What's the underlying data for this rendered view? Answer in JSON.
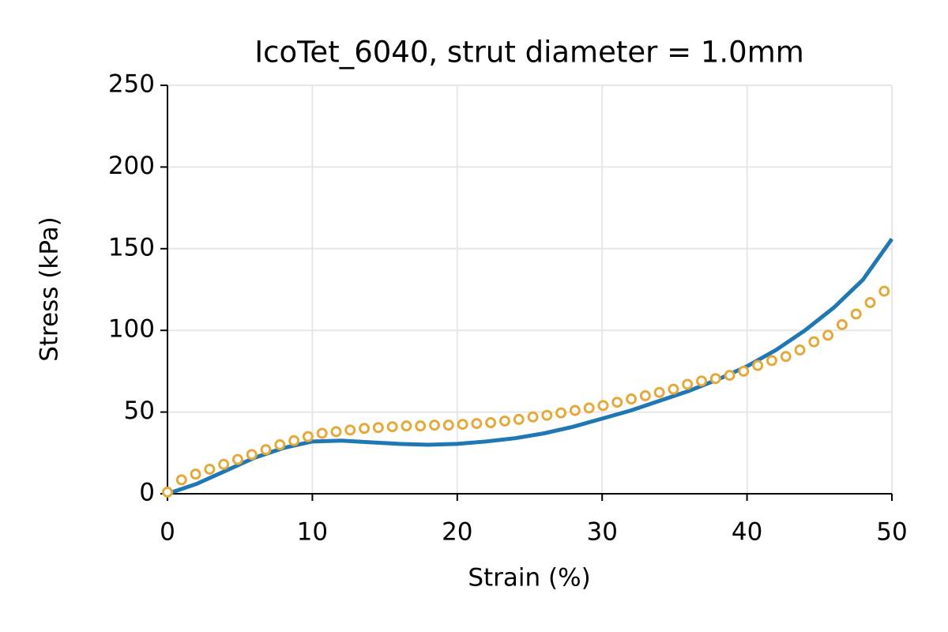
{
  "chart_data": {
    "type": "line",
    "title": "IcoTet_6040, strut diameter = 1.0mm",
    "x_label": "Strain (%)",
    "y_label": "Stress (kPa)",
    "xlim": [
      0,
      50
    ],
    "ylim": [
      0,
      250
    ],
    "xticks": [
      0,
      10,
      20,
      30,
      40,
      50
    ],
    "yticks": [
      0,
      50,
      100,
      150,
      200,
      250
    ],
    "grid": true,
    "series": [
      {
        "style": "line",
        "color": "#1f77b4",
        "x": [
          0,
          2,
          4,
          6,
          8,
          10,
          12,
          14,
          16,
          18,
          20,
          22,
          24,
          26,
          28,
          30,
          32,
          34,
          36,
          38,
          40,
          42,
          44,
          46,
          48,
          50
        ],
        "values": [
          0,
          6,
          14,
          22,
          28,
          32,
          32.5,
          31.5,
          30.5,
          30,
          30.5,
          32,
          34,
          37,
          41,
          46,
          51,
          57,
          63,
          70,
          78,
          88,
          100,
          114,
          131,
          156
        ]
      },
      {
        "style": "markers",
        "color": "#e5a93b",
        "x": [
          0,
          0.97,
          1.94,
          2.91,
          3.88,
          4.85,
          5.82,
          6.79,
          7.76,
          8.73,
          9.7,
          10.67,
          11.64,
          12.61,
          13.58,
          14.55,
          15.52,
          16.49,
          17.46,
          18.43,
          19.4,
          20.37,
          21.34,
          22.31,
          23.28,
          24.25,
          25.22,
          26.19,
          27.16,
          28.13,
          29.1,
          30.07,
          31.04,
          32.01,
          32.98,
          33.95,
          34.92,
          35.89,
          36.86,
          37.83,
          38.8,
          39.77,
          40.74,
          41.71,
          42.68,
          43.65,
          44.62,
          45.59,
          46.56,
          47.53,
          48.5,
          49.47
        ],
        "values": [
          1,
          8.5,
          12,
          15,
          18,
          21,
          24,
          27,
          30,
          32.5,
          35,
          37,
          38,
          39,
          40,
          40.5,
          41,
          41.5,
          41.5,
          42,
          42,
          42.5,
          43,
          43.5,
          44.5,
          45.5,
          47,
          48,
          49.5,
          51,
          52.5,
          54,
          56,
          58,
          60,
          62,
          64,
          67,
          69,
          70.5,
          72.5,
          75,
          78.5,
          81.5,
          84,
          88,
          93,
          97,
          103.5,
          110,
          117,
          124
        ]
      }
    ]
  }
}
